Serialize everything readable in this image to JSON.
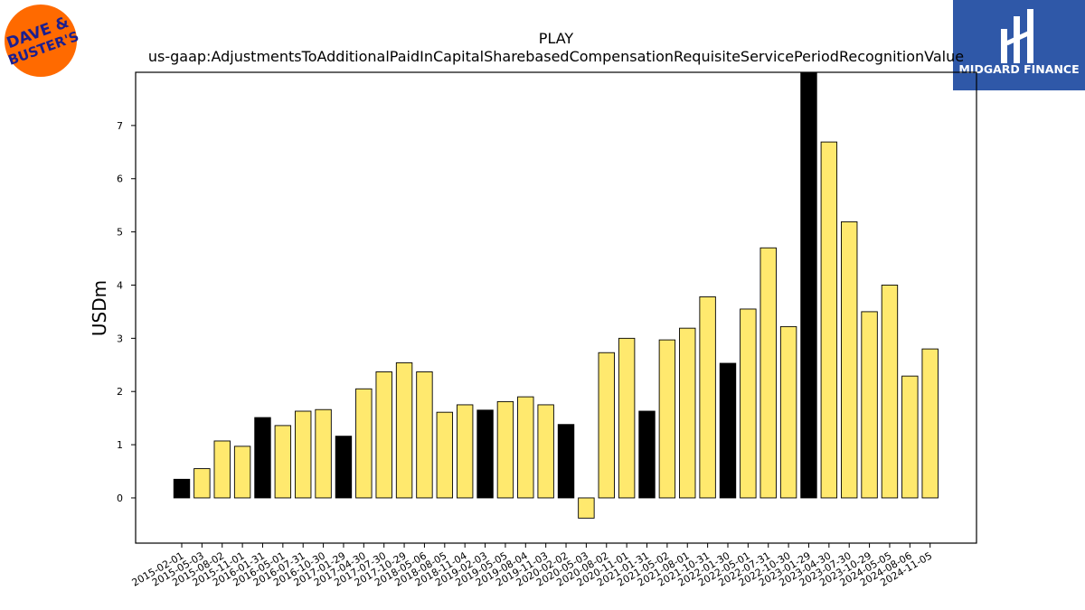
{
  "logos": {
    "left": {
      "text_line1": "DAVE &",
      "text_line2": "BUSTER'S",
      "bg_color": "#ff6a00",
      "text_color": "#1b1f8f"
    },
    "right": {
      "text": "MIDGARD FINANCE",
      "bg_color": "#2f58a8",
      "text_color": "#ffffff"
    }
  },
  "chart_data": {
    "type": "bar",
    "title": "PLAY",
    "subtitle": "us-gaap:AdjustmentsToAdditionalPaidInCapitalSharebasedCompensationRequisiteServicePeriodRecognitionValue",
    "xlabel": "",
    "ylabel": "USDm",
    "ylim": [
      -0.85,
      8.0
    ],
    "yticks": [
      0,
      1,
      2,
      3,
      4,
      5,
      6,
      7
    ],
    "grid": false,
    "colors": {
      "yellow": "#ffe96e",
      "black": "#000000",
      "edge": "#000000"
    },
    "categories": [
      "2015-02-01",
      "2015-05-03",
      "2015-08-02",
      "2015-11-01",
      "2016-01-31",
      "2016-05-01",
      "2016-07-31",
      "2016-10-30",
      "2017-01-29",
      "2017-04-30",
      "2017-07-30",
      "2017-10-29",
      "2018-05-06",
      "2018-08-05",
      "2018-11-04",
      "2019-02-03",
      "2019-05-05",
      "2019-08-04",
      "2019-11-03",
      "2020-02-02",
      "2020-05-03",
      "2020-08-02",
      "2020-11-01",
      "2021-01-31",
      "2021-05-02",
      "2021-08-01",
      "2021-10-31",
      "2022-01-30",
      "2022-05-01",
      "2022-07-31",
      "2022-10-30",
      "2023-01-29",
      "2023-04-30",
      "2023-07-30",
      "2023-10-29",
      "2024-05-05",
      "2024-08-06",
      "2024-11-05"
    ],
    "values": [
      0.35,
      0.55,
      1.07,
      0.97,
      1.51,
      1.36,
      1.63,
      1.66,
      1.16,
      2.05,
      2.37,
      2.54,
      2.37,
      1.61,
      1.75,
      1.65,
      1.81,
      1.9,
      1.75,
      1.38,
      -0.38,
      2.73,
      3.0,
      1.63,
      2.97,
      3.19,
      3.78,
      2.53,
      3.55,
      4.7,
      3.22,
      8.0,
      6.69,
      5.19,
      3.5,
      4.0,
      2.29,
      2.8
    ],
    "bar_colors": [
      "black",
      "yellow",
      "yellow",
      "yellow",
      "black",
      "yellow",
      "yellow",
      "yellow",
      "black",
      "yellow",
      "yellow",
      "yellow",
      "yellow",
      "yellow",
      "yellow",
      "black",
      "yellow",
      "yellow",
      "yellow",
      "black",
      "yellow",
      "yellow",
      "yellow",
      "black",
      "yellow",
      "yellow",
      "yellow",
      "black",
      "yellow",
      "yellow",
      "yellow",
      "black",
      "yellow",
      "yellow",
      "yellow",
      "yellow",
      "yellow",
      "yellow"
    ]
  }
}
